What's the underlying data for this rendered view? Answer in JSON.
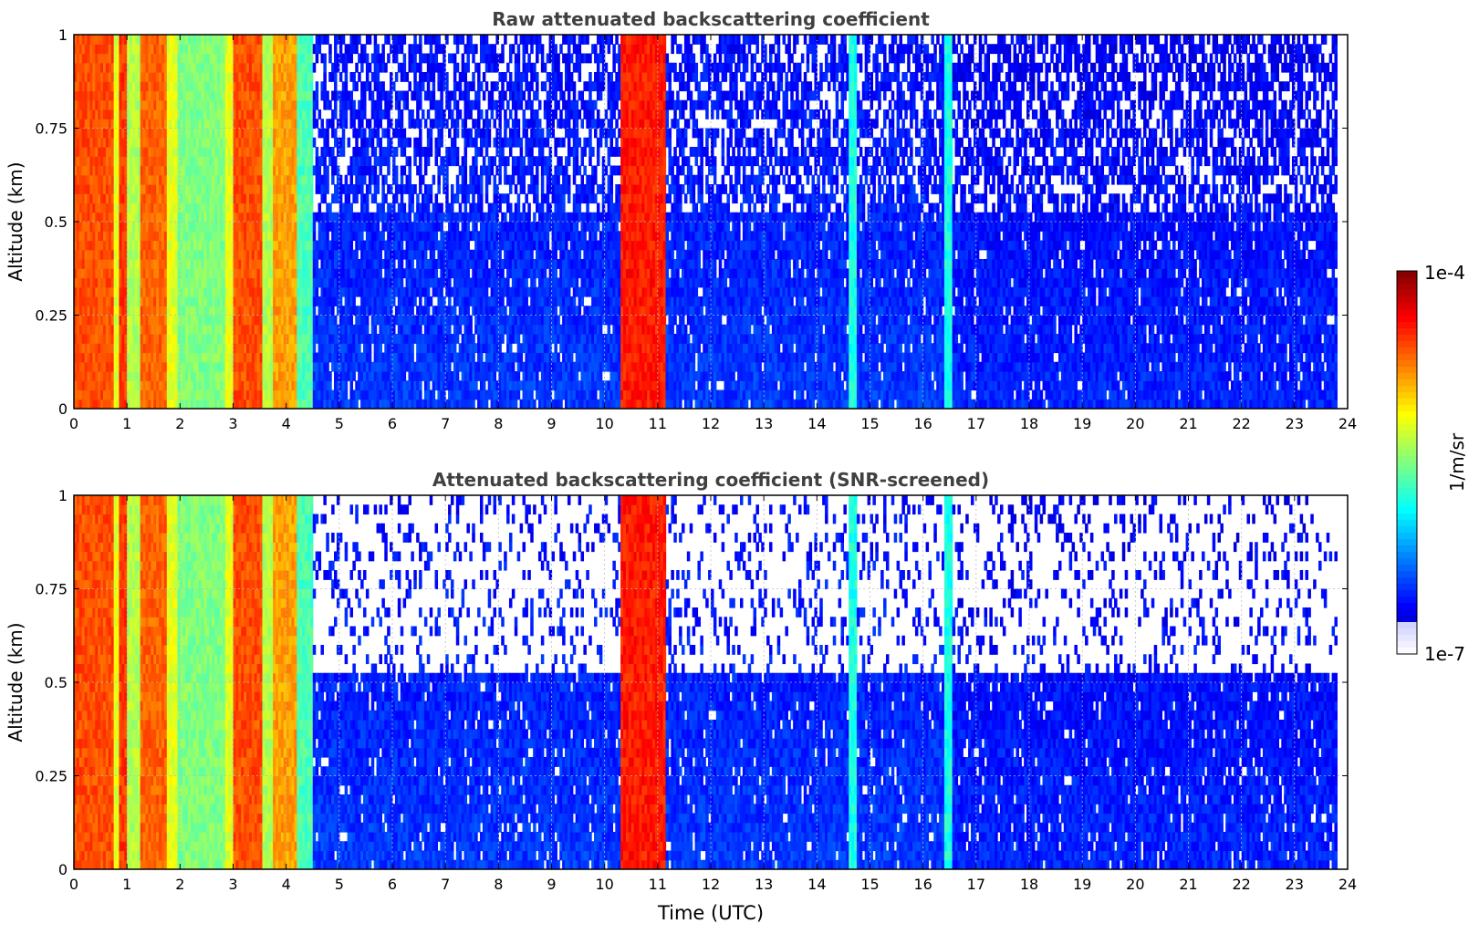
{
  "figure": {
    "xlabel": "Time (UTC)",
    "colorbar": {
      "label": "1/m/sr",
      "max_label": "1e-4",
      "min_label": "1e-7",
      "vmin": 1e-07,
      "vmax": 0.0001,
      "scale": "log",
      "colormap": "jet"
    }
  },
  "chart_data": [
    {
      "type": "heatmap",
      "title": "Raw attenuated backscattering coefficient",
      "xlabel": "",
      "ylabel": "Altitude (km)",
      "xlim": [
        0,
        24
      ],
      "ylim": [
        0,
        1
      ],
      "xticks": [
        "0",
        "1",
        "2",
        "3",
        "4",
        "5",
        "6",
        "7",
        "8",
        "9",
        "10",
        "11",
        "12",
        "13",
        "14",
        "15",
        "16",
        "17",
        "18",
        "19",
        "20",
        "21",
        "22",
        "23",
        "24"
      ],
      "yticks": [
        "0",
        "0.25",
        "0.5",
        "0.75",
        "1"
      ],
      "grid": true,
      "screened": false,
      "data_end_hour": 23.8,
      "segments": [
        {
          "x0": 0.0,
          "x1": 0.75,
          "level": 0.8
        },
        {
          "x0": 0.75,
          "x1": 0.85,
          "level": 0.6
        },
        {
          "x0": 0.85,
          "x1": 1.0,
          "level": 0.82
        },
        {
          "x0": 1.0,
          "x1": 1.25,
          "level": 0.55
        },
        {
          "x0": 1.25,
          "x1": 1.75,
          "level": 0.78
        },
        {
          "x0": 1.75,
          "x1": 1.95,
          "level": 0.6
        },
        {
          "x0": 1.95,
          "x1": 2.85,
          "level": 0.5
        },
        {
          "x0": 2.85,
          "x1": 3.0,
          "level": 0.6
        },
        {
          "x0": 3.0,
          "x1": 3.55,
          "level": 0.8
        },
        {
          "x0": 3.55,
          "x1": 3.75,
          "level": 0.55
        },
        {
          "x0": 3.75,
          "x1": 4.2,
          "level": 0.72
        },
        {
          "x0": 4.2,
          "x1": 4.5,
          "level": 0.45
        },
        {
          "x0": 4.5,
          "x1": 10.3,
          "level": 0.18
        },
        {
          "x0": 10.3,
          "x1": 11.15,
          "level": 0.85
        },
        {
          "x0": 11.15,
          "x1": 14.6,
          "level": 0.18
        },
        {
          "x0": 14.6,
          "x1": 14.75,
          "level": 0.4
        },
        {
          "x0": 14.75,
          "x1": 16.4,
          "level": 0.18
        },
        {
          "x0": 16.4,
          "x1": 16.55,
          "level": 0.4
        },
        {
          "x0": 16.55,
          "x1": 23.8,
          "level": 0.16
        }
      ]
    },
    {
      "type": "heatmap",
      "title": "Attenuated backscattering coefficient (SNR-screened)",
      "xlabel": "Time (UTC)",
      "ylabel": "Altitude (km)",
      "xlim": [
        0,
        24
      ],
      "ylim": [
        0,
        1
      ],
      "xticks": [
        "0",
        "1",
        "2",
        "3",
        "4",
        "5",
        "6",
        "7",
        "8",
        "9",
        "10",
        "11",
        "12",
        "13",
        "14",
        "15",
        "16",
        "17",
        "18",
        "19",
        "20",
        "21",
        "22",
        "23",
        "24"
      ],
      "yticks": [
        "0",
        "0.25",
        "0.5",
        "0.75",
        "1"
      ],
      "grid": true,
      "screened": true,
      "data_end_hour": 23.8,
      "segments": [
        {
          "x0": 0.0,
          "x1": 0.75,
          "level": 0.8
        },
        {
          "x0": 0.75,
          "x1": 0.85,
          "level": 0.6
        },
        {
          "x0": 0.85,
          "x1": 1.0,
          "level": 0.82
        },
        {
          "x0": 1.0,
          "x1": 1.25,
          "level": 0.55
        },
        {
          "x0": 1.25,
          "x1": 1.75,
          "level": 0.78
        },
        {
          "x0": 1.75,
          "x1": 1.95,
          "level": 0.6
        },
        {
          "x0": 1.95,
          "x1": 2.85,
          "level": 0.5
        },
        {
          "x0": 2.85,
          "x1": 3.0,
          "level": 0.6
        },
        {
          "x0": 3.0,
          "x1": 3.55,
          "level": 0.8
        },
        {
          "x0": 3.55,
          "x1": 3.75,
          "level": 0.55
        },
        {
          "x0": 3.75,
          "x1": 4.2,
          "level": 0.72
        },
        {
          "x0": 4.2,
          "x1": 4.5,
          "level": 0.45
        },
        {
          "x0": 4.5,
          "x1": 10.3,
          "level": 0.18
        },
        {
          "x0": 10.3,
          "x1": 11.15,
          "level": 0.85
        },
        {
          "x0": 11.15,
          "x1": 14.6,
          "level": 0.18
        },
        {
          "x0": 14.6,
          "x1": 14.75,
          "level": 0.4
        },
        {
          "x0": 14.75,
          "x1": 16.4,
          "level": 0.18
        },
        {
          "x0": 16.4,
          "x1": 16.55,
          "level": 0.4
        },
        {
          "x0": 16.55,
          "x1": 23.8,
          "level": 0.16
        }
      ]
    }
  ]
}
